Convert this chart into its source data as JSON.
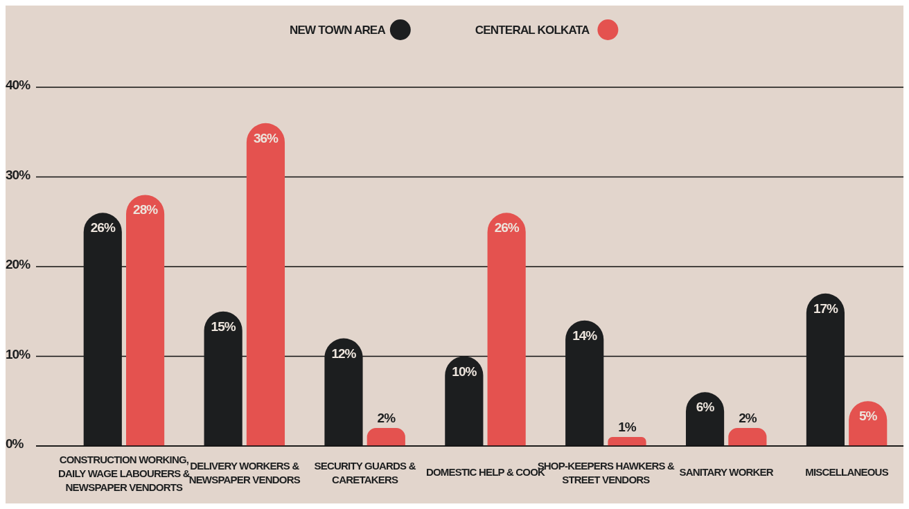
{
  "chart_data": {
    "type": "bar",
    "categories": [
      "CONSTRUCTION WORKING, DAILY  WAGE LABOURERS & NEWSPAPER VENDORTS",
      "DELIVERY WORKERS & NEWSPAPER VENDORS",
      "SECURITY GUARDS & CARETAKERS",
      "DOMESTIC HELP & COOK",
      "SHOP-KEEPERS HAWKERS & STREET VENDORS",
      "SANITARY WORKER",
      "MISCELLANEOUS"
    ],
    "series": [
      {
        "name": "NEW TOWN AREA",
        "color": "#1c1e1f",
        "values": [
          26,
          15,
          12,
          10,
          14,
          6,
          17
        ],
        "value_labels": [
          "26%",
          "15%",
          "12%",
          "10%",
          "14%",
          "6%",
          "17%"
        ]
      },
      {
        "name": "CENTERAL KOLKATA",
        "color": "#e4524f",
        "values": [
          28,
          36,
          2,
          26,
          1,
          2,
          5
        ],
        "value_labels": [
          "28%",
          "36%",
          "2%",
          "26%",
          "1%",
          "2%",
          "5%"
        ]
      }
    ],
    "ylim": [
      0,
      40
    ],
    "yticks": [
      {
        "value": 0,
        "label": "0%"
      },
      {
        "value": 10,
        "label": "10%"
      },
      {
        "value": 20,
        "label": "20%"
      },
      {
        "value": 30,
        "label": "30%"
      },
      {
        "value": 40,
        "label": "40%"
      }
    ],
    "grid": "y",
    "legend": "top"
  }
}
